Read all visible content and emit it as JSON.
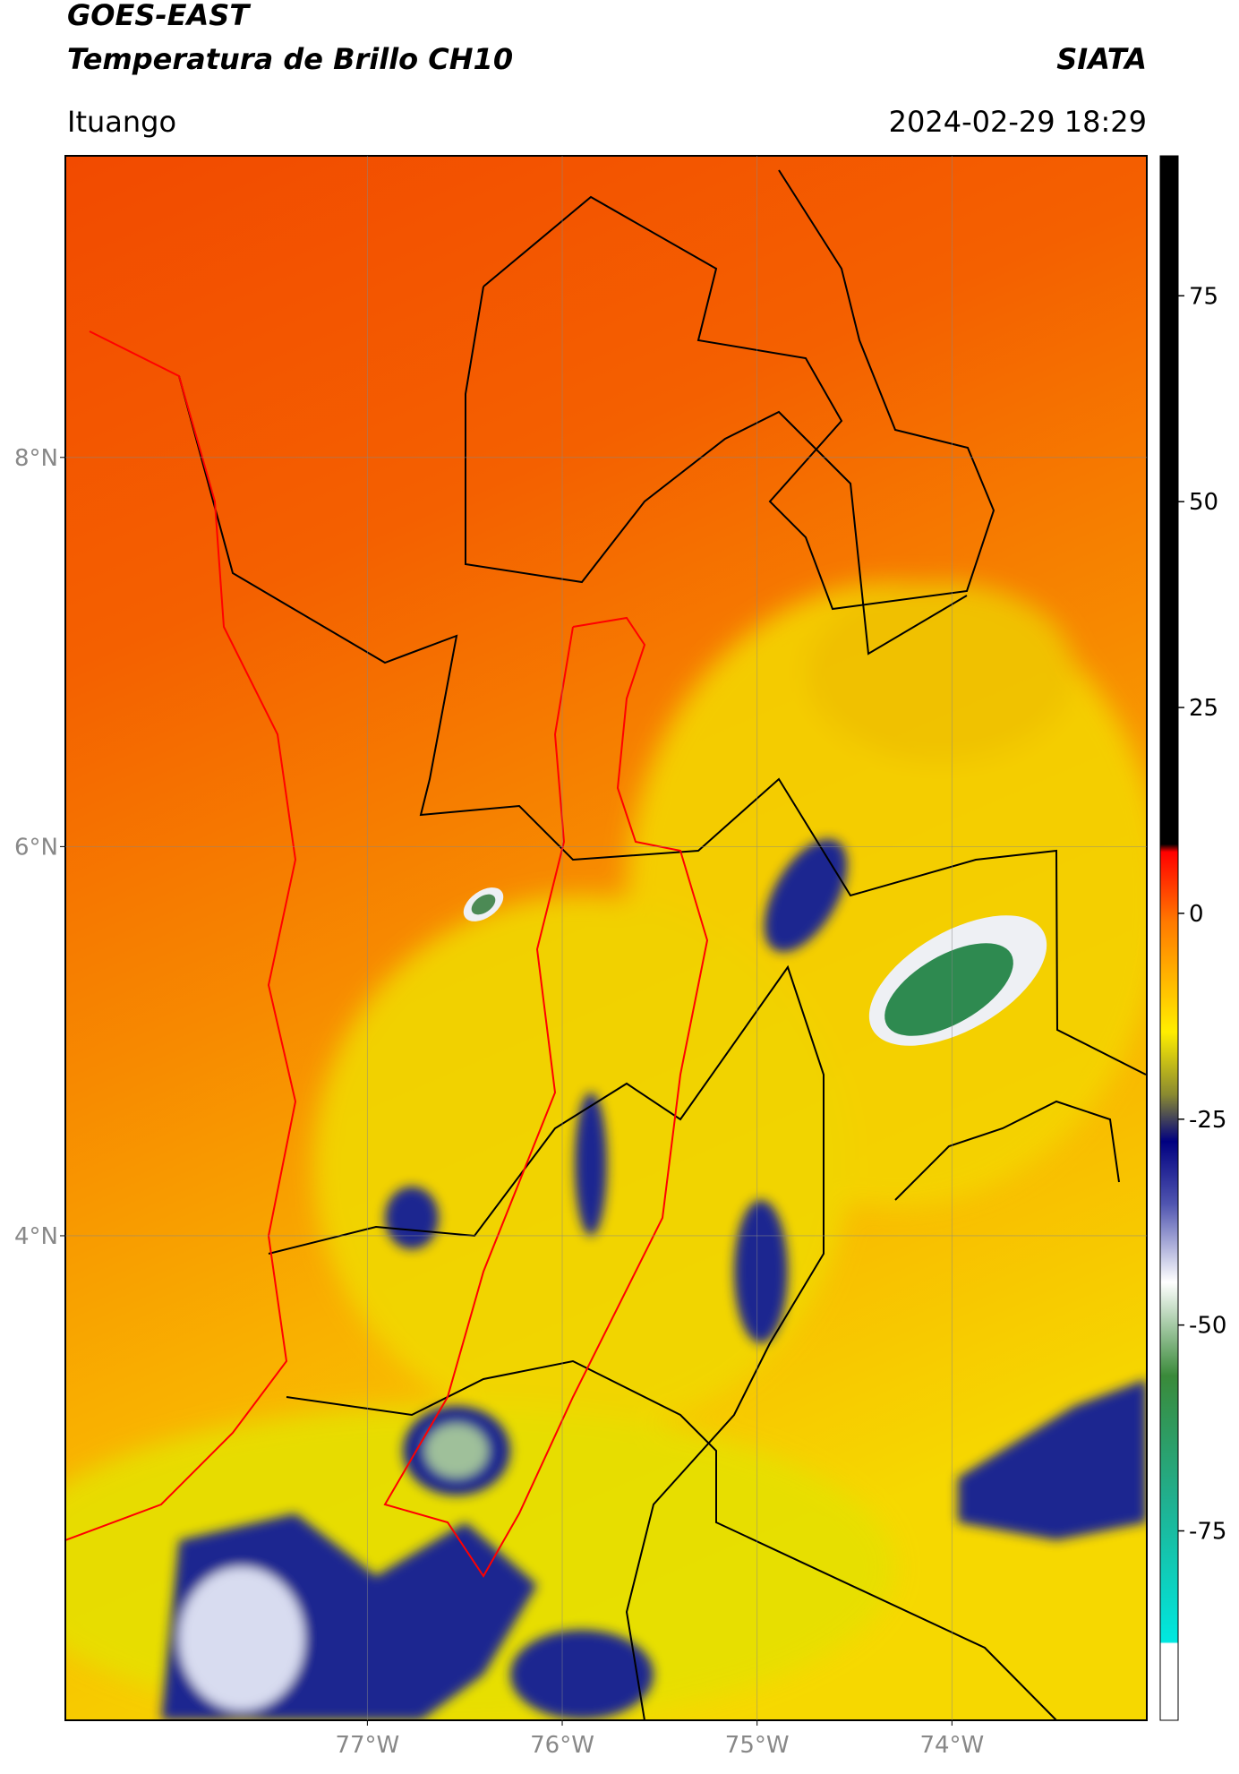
{
  "header": {
    "satellite": "GOES-EAST",
    "product": "Temperatura de Brillo CH10",
    "source": "SIATA",
    "region": "Ituango",
    "datetime": "2024-02-29 18:29"
  },
  "map": {
    "latlim": [
      1.51,
      9.55
    ],
    "lonlim": [
      -78.55,
      -73.0
    ],
    "latticks": [
      {
        "value": 8,
        "label": "8°N"
      },
      {
        "value": 6,
        "label": "6°N"
      },
      {
        "value": 4,
        "label": "4°N"
      }
    ],
    "lonticks": [
      {
        "value": -77,
        "label": "77°W"
      },
      {
        "value": -76,
        "label": "76°W"
      },
      {
        "value": -75,
        "label": "75°W"
      },
      {
        "value": -74,
        "label": "74°W"
      }
    ]
  },
  "colorbar": {
    "lim": [
      -98,
      92
    ],
    "ticks": [
      75,
      50,
      25,
      0,
      -25,
      -50,
      -75
    ]
  }
}
